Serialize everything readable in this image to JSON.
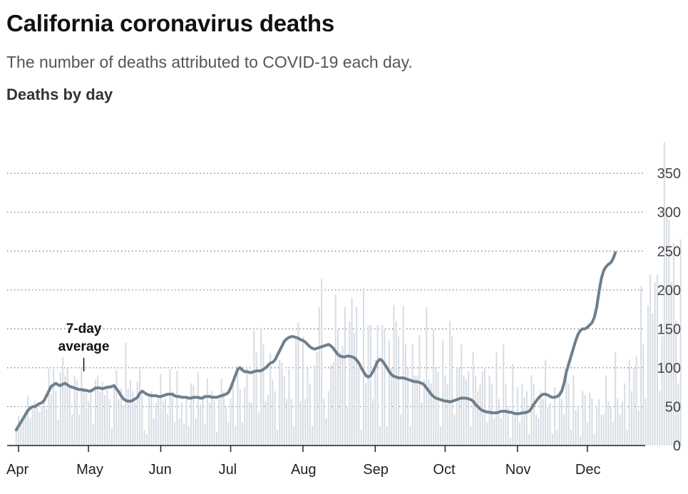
{
  "header": {
    "title": "California coronavirus deaths",
    "subtitle": "The number of deaths attributed to COVID-19 each day.",
    "section_label": "Deaths by day"
  },
  "colors": {
    "bars": "#d7dde4",
    "average_line": "#6e7f8d",
    "gridline": "#777777"
  },
  "chart_data": {
    "type": "bar",
    "x_start": "2020-03-31",
    "x_end": "2020-12-18",
    "ylim": [
      0,
      400
    ],
    "yticks": [
      0,
      50,
      100,
      150,
      200,
      250,
      300,
      350
    ],
    "month_ticks": [
      {
        "label": "Apr",
        "date": "2020-04-01"
      },
      {
        "label": "May",
        "date": "2020-05-01"
      },
      {
        "label": "Jun",
        "date": "2020-06-01"
      },
      {
        "label": "Jul",
        "date": "2020-07-01"
      },
      {
        "label": "Aug",
        "date": "2020-08-01"
      },
      {
        "label": "Sep",
        "date": "2020-09-01"
      },
      {
        "label": "Oct",
        "date": "2020-10-01"
      },
      {
        "label": "Nov",
        "date": "2020-11-01"
      },
      {
        "label": "Dec",
        "date": "2020-12-01"
      }
    ],
    "grid": true,
    "annotation": {
      "lines": [
        "7-day",
        "average"
      ],
      "date": "2020-04-29",
      "value": 76
    },
    "series": [
      {
        "values": [
          20,
          38,
          30,
          35,
          45,
          64,
          35,
          47,
          58,
          55,
          43,
          50,
          55,
          47,
          99,
          66,
          100,
          70,
          33,
          94,
          114,
          90,
          100,
          75,
          40,
          90,
          85,
          40,
          100,
          74,
          68,
          57,
          73,
          28,
          85,
          90,
          70,
          82,
          65,
          76,
          60,
          22,
          80,
          97,
          60,
          74,
          52,
          132,
          73,
          84,
          70,
          55,
          82,
          99,
          65,
          20,
          15,
          66,
          70,
          35,
          55,
          60,
          92,
          57,
          60,
          40,
          98,
          70,
          30,
          96,
          35,
          55,
          28,
          60,
          25,
          80,
          78,
          35,
          94,
          53,
          65,
          28,
          86,
          55,
          70,
          58,
          18,
          60,
          86,
          70,
          50,
          30,
          60,
          83,
          25,
          103,
          73,
          30,
          75,
          100,
          56,
          55,
          148,
          120,
          42,
          150,
          130,
          57,
          65,
          119,
          85,
          70,
          20,
          110,
          107,
          89,
          60,
          98,
          60,
          25,
          140,
          158,
          57,
          140,
          60,
          100,
          80,
          25,
          103,
          120,
          178,
          215,
          60,
          35,
          70,
          103,
          107,
          194,
          150,
          120,
          128,
          178,
          50,
          160,
          190,
          145,
          178,
          100,
          20,
          202,
          80,
          155,
          155,
          60,
          110,
          155,
          25,
          155,
          150,
          25,
          135,
          100,
          180,
          160,
          140,
          40,
          180,
          130,
          100,
          25,
          130,
          90,
          90,
          142,
          55,
          85,
          178,
          85,
          80,
          150,
          100,
          95,
          25,
          135,
          90,
          80,
          160,
          140,
          40,
          100,
          100,
          130,
          90,
          85,
          95,
          25,
          120,
          90,
          70,
          80,
          95,
          100,
          30,
          90,
          80,
          35,
          120,
          60,
          35,
          130,
          80,
          50,
          10,
          105,
          40,
          75,
          30,
          80,
          62,
          70,
          15,
          90,
          80,
          40,
          35,
          70,
          60,
          110,
          50,
          55,
          15,
          75,
          20,
          70,
          60,
          40,
          100,
          80,
          20,
          90,
          45,
          50,
          12,
          70,
          65,
          30,
          68,
          60,
          15,
          50,
          60,
          40,
          40,
          90,
          57,
          50,
          30,
          120,
          60,
          40,
          57,
          80,
          20,
          110,
          70,
          100,
          115,
          45,
          205,
          130,
          60,
          180,
          220,
          170,
          210,
          220,
          70,
          140,
          390,
          295,
          290,
          210,
          260,
          160,
          80,
          265
        ],
        "average": [
          20,
          25,
          30,
          35,
          40,
          45,
          48,
          50,
          50,
          52,
          54,
          55,
          58,
          64,
          70,
          76,
          78,
          80,
          78,
          77,
          79,
          80,
          78,
          76,
          75,
          74,
          73,
          72,
          72,
          71,
          71,
          70,
          70,
          72,
          74,
          74,
          74,
          73,
          74,
          75,
          75,
          76,
          77,
          73,
          69,
          64,
          60,
          58,
          57,
          57,
          58,
          60,
          62,
          67,
          70,
          68,
          66,
          65,
          64,
          64,
          64,
          63,
          63,
          64,
          65,
          66,
          66,
          66,
          64,
          63,
          63,
          62,
          62,
          62,
          61,
          61,
          62,
          62,
          62,
          61,
          61,
          63,
          63,
          63,
          62,
          62,
          62,
          63,
          64,
          65,
          66,
          68,
          74,
          82,
          90,
          98,
          100,
          97,
          95,
          95,
          94,
          94,
          95,
          96,
          96,
          96,
          98,
          100,
          103,
          106,
          107,
          110,
          116,
          122,
          128,
          134,
          137,
          139,
          140,
          140,
          139,
          138,
          136,
          135,
          133,
          130,
          127,
          125,
          124,
          125,
          126,
          127,
          128,
          129,
          130,
          128,
          125,
          121,
          117,
          115,
          114,
          114,
          115,
          115,
          114,
          113,
          110,
          106,
          100,
          95,
          90,
          88,
          90,
          95,
          101,
          108,
          111,
          109,
          105,
          100,
          95,
          91,
          89,
          88,
          87,
          87,
          87,
          86,
          85,
          84,
          83,
          82,
          82,
          81,
          80,
          78,
          74,
          70,
          66,
          63,
          61,
          60,
          59,
          58,
          57,
          57,
          56,
          57,
          58,
          59,
          60,
          61,
          61,
          61,
          60,
          59,
          57,
          53,
          50,
          47,
          45,
          44,
          43,
          43,
          42,
          42,
          42,
          43,
          44,
          44,
          44,
          43,
          43,
          42,
          41,
          41,
          41,
          42,
          42,
          43,
          44,
          48,
          53,
          57,
          61,
          64,
          66,
          66,
          65,
          63,
          62,
          62,
          63,
          65,
          70,
          80,
          95,
          105,
          115,
          125,
          135,
          143,
          148,
          150,
          150,
          152,
          155,
          158,
          165,
          178,
          198,
          215,
          225,
          230,
          233,
          235,
          240,
          248
        ]
      }
    ]
  }
}
